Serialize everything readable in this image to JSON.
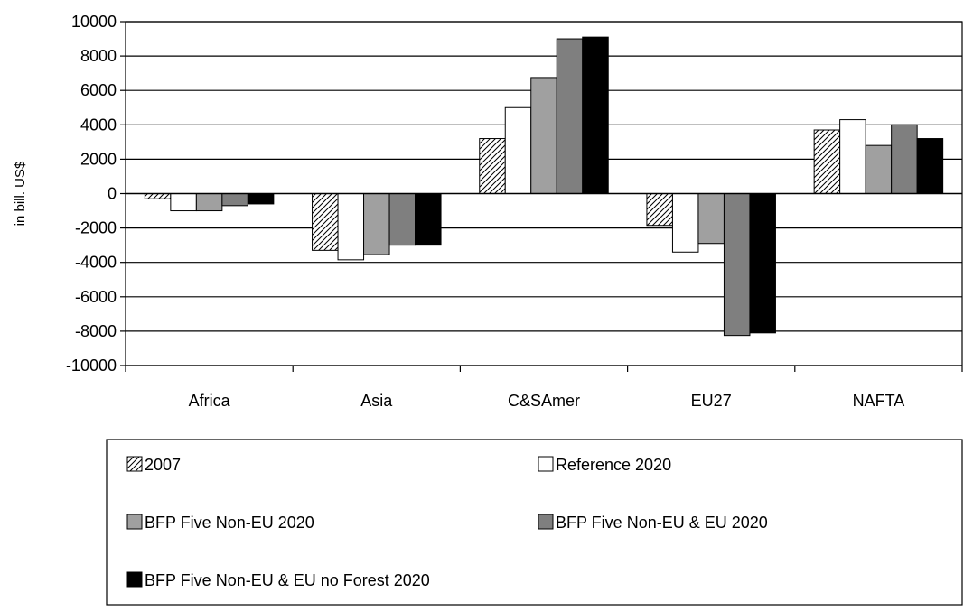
{
  "chart_data": {
    "type": "bar",
    "title": "",
    "xlabel": "",
    "ylabel": "in bill. US$",
    "ylim": [
      -10000,
      10000
    ],
    "yticks": [
      10000,
      8000,
      6000,
      4000,
      2000,
      0,
      -2000,
      -4000,
      -6000,
      -8000,
      -10000
    ],
    "categories": [
      "Africa",
      "Asia",
      "C&SAmer",
      "EU27",
      "NAFTA"
    ],
    "grid": true,
    "legend_position": "bottom",
    "series": [
      {
        "name": "2007",
        "values": [
          -300,
          -3300,
          3200,
          -1850,
          3700
        ],
        "fill": "hatch",
        "color": "#000000"
      },
      {
        "name": "Reference 2020",
        "values": [
          -1000,
          -3850,
          5000,
          -3400,
          4300
        ],
        "fill": "solid",
        "color": "#ffffff"
      },
      {
        "name": "BFP Five Non-EU 2020",
        "values": [
          -1000,
          -3550,
          6750,
          -2900,
          2800
        ],
        "fill": "solid",
        "color": "#a0a0a0"
      },
      {
        "name": "BFP Five Non-EU & EU 2020",
        "values": [
          -700,
          -3000,
          9000,
          -8250,
          4000
        ],
        "fill": "solid",
        "color": "#7f7f7f"
      },
      {
        "name": "BFP Five Non-EU & EU no Forest  2020",
        "values": [
          -600,
          -3000,
          9100,
          -8100,
          3200
        ],
        "fill": "solid",
        "color": "#000000"
      }
    ]
  }
}
